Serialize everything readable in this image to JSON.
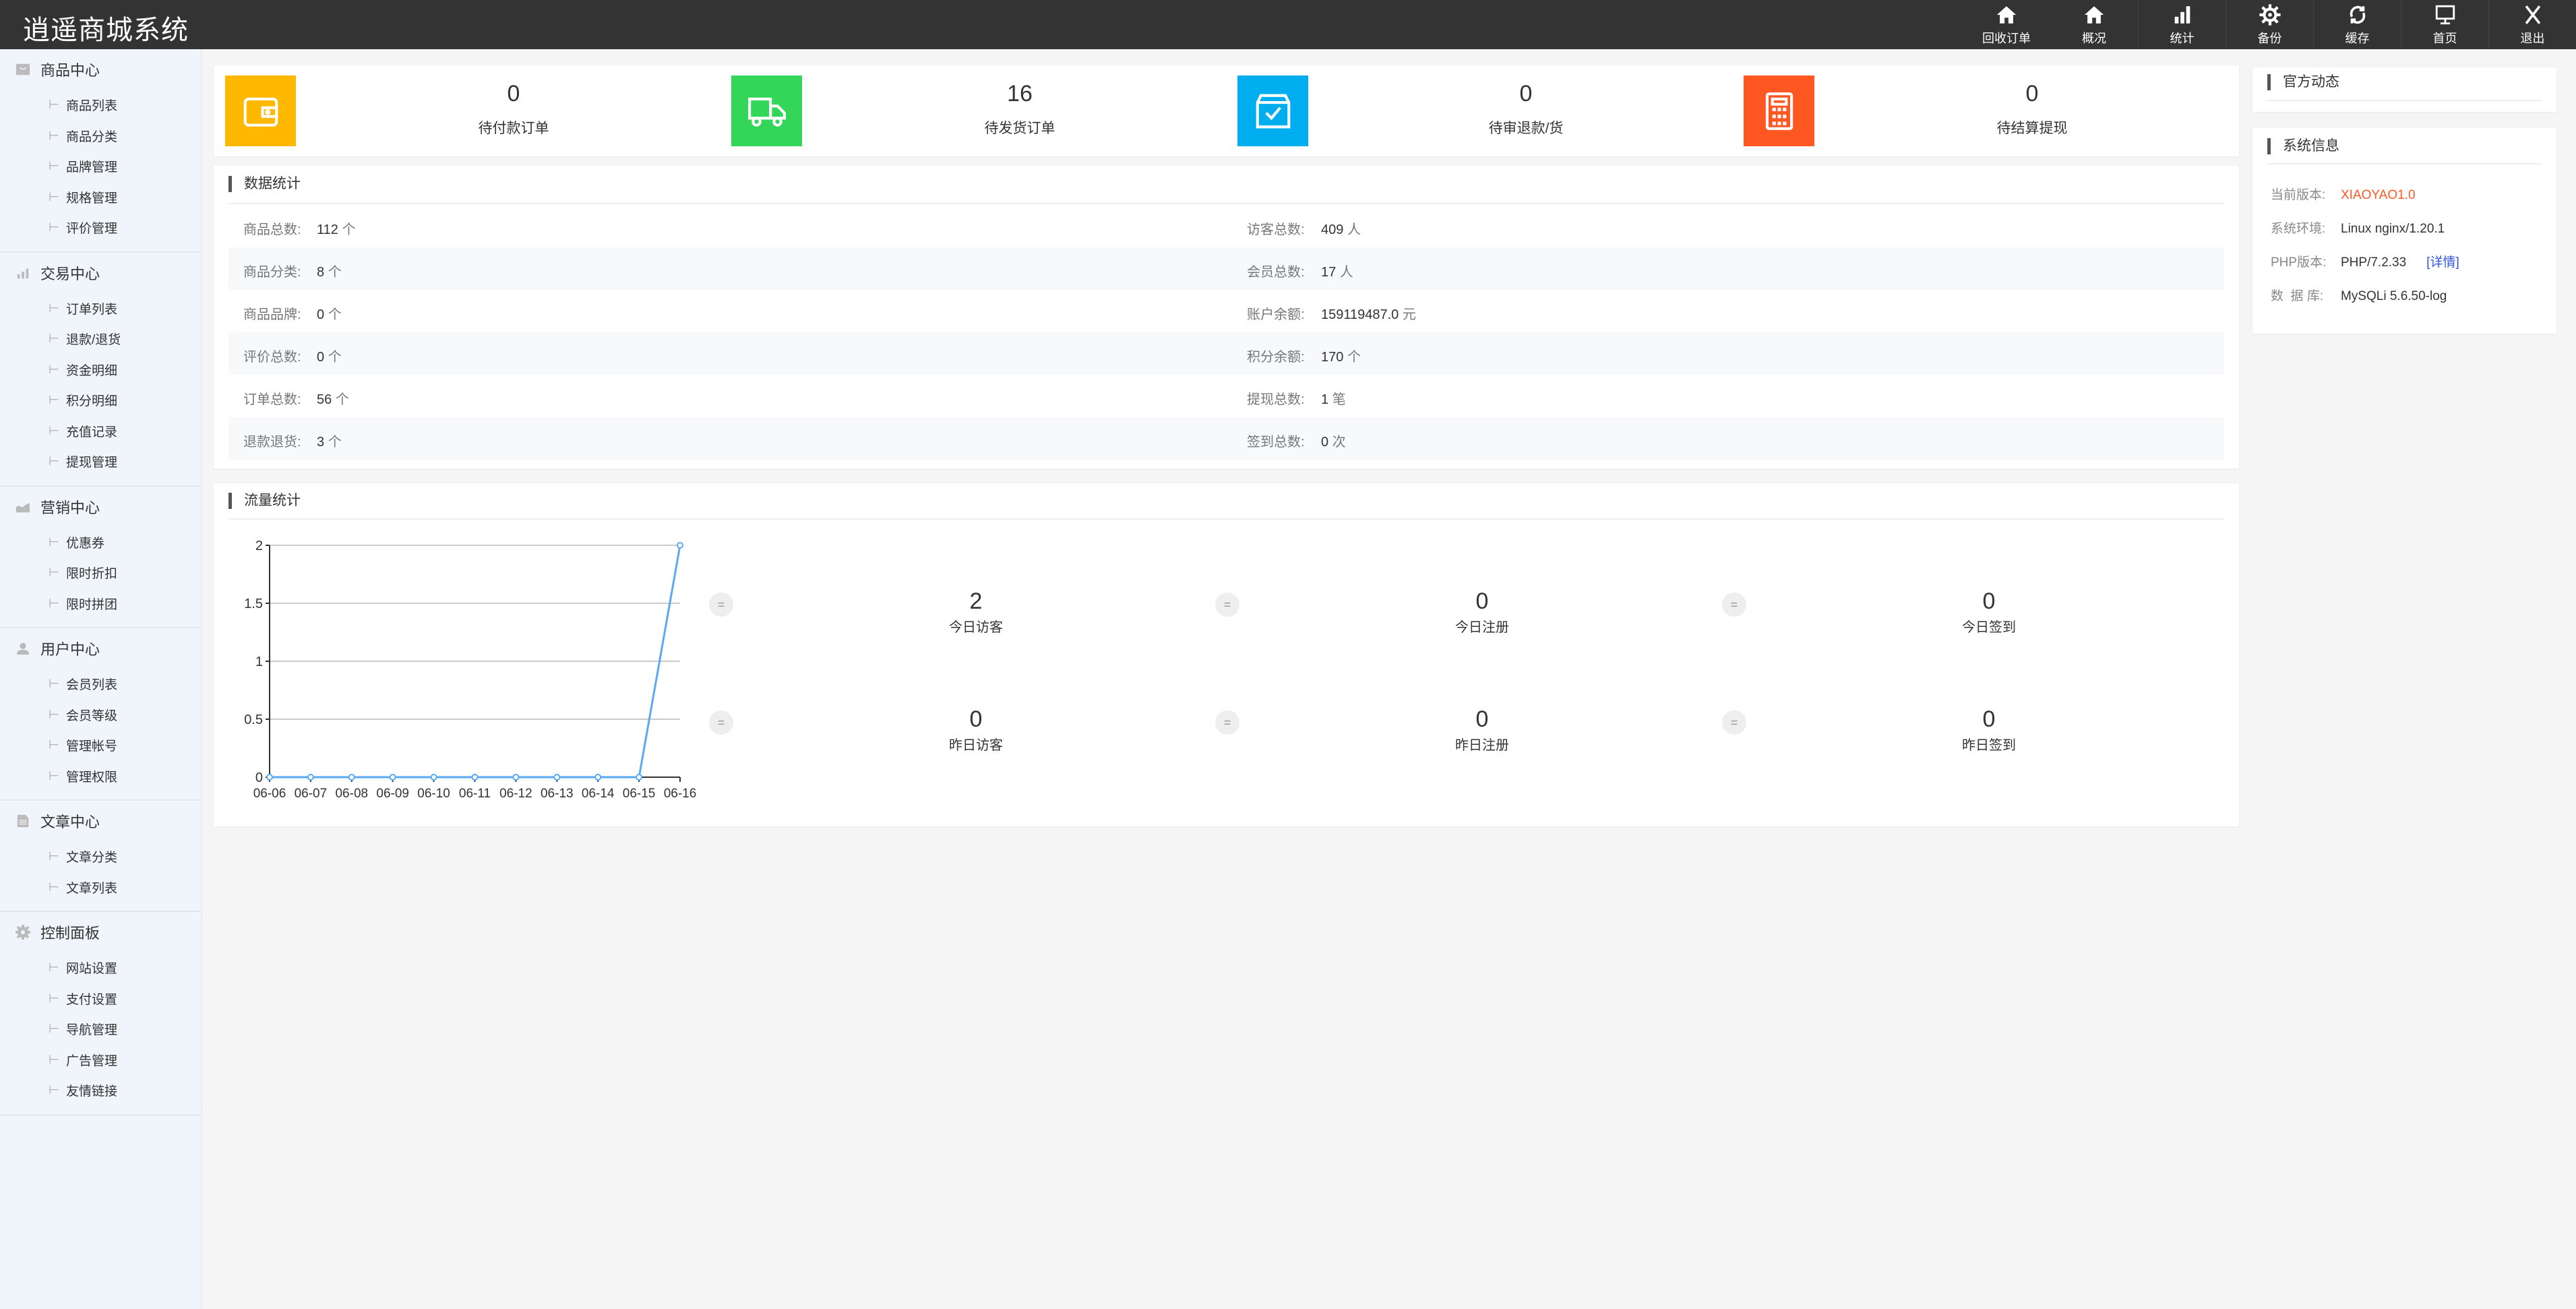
{
  "app": {
    "title": "逍遥商城系统"
  },
  "topnav": [
    {
      "label": "回收订单",
      "icon": "home-icon"
    },
    {
      "label": "概况",
      "icon": "home-icon"
    },
    {
      "label": "统计",
      "icon": "bar-chart-icon"
    },
    {
      "label": "备份",
      "icon": "gear-icon"
    },
    {
      "label": "缓存",
      "icon": "refresh-icon"
    },
    {
      "label": "首页",
      "icon": "monitor-icon"
    },
    {
      "label": "退出",
      "icon": "close-icon"
    }
  ],
  "sidebar": [
    {
      "title": "商品中心",
      "icon": "shopping-bag-icon",
      "items": [
        "商品列表",
        "商品分类",
        "品牌管理",
        "规格管理",
        "评价管理"
      ]
    },
    {
      "title": "交易中心",
      "icon": "bar-chart-icon",
      "items": [
        "订单列表",
        "退款/退货",
        "资金明细",
        "积分明细",
        "充值记录",
        "提现管理"
      ]
    },
    {
      "title": "营销中心",
      "icon": "trend-chart-icon",
      "items": [
        "优惠券",
        "限时折扣",
        "限时拼团"
      ]
    },
    {
      "title": "用户中心",
      "icon": "user-icon",
      "items": [
        "会员列表",
        "会员等级",
        "管理帐号",
        "管理权限"
      ]
    },
    {
      "title": "文章中心",
      "icon": "document-icon",
      "items": [
        "文章分类",
        "文章列表"
      ]
    },
    {
      "title": "控制面板",
      "icon": "gear-icon",
      "items": [
        "网站设置",
        "支付设置",
        "导航管理",
        "广告管理",
        "友情链接"
      ]
    }
  ],
  "stats": [
    {
      "value": "0",
      "label": "待付款订单",
      "icon": "wallet-icon",
      "color": "#FFB800"
    },
    {
      "value": "16",
      "label": "待发货订单",
      "icon": "truck-icon",
      "color": "#33D659"
    },
    {
      "value": "0",
      "label": "待审退款/货",
      "icon": "box-check-icon",
      "color": "#00AEEF"
    },
    {
      "value": "0",
      "label": "待结算提现",
      "icon": "calculator-icon",
      "color": "#FF5722"
    }
  ],
  "data_stats": {
    "title": "数据统计",
    "left": [
      {
        "label": "商品总数:",
        "value": "112",
        "unit": "个"
      },
      {
        "label": "商品分类:",
        "value": "8",
        "unit": "个"
      },
      {
        "label": "商品品牌:",
        "value": "0",
        "unit": "个"
      },
      {
        "label": "评价总数:",
        "value": "0",
        "unit": "个"
      },
      {
        "label": "订单总数:",
        "value": "56",
        "unit": "个"
      },
      {
        "label": "退款退货:",
        "value": "3",
        "unit": "个"
      }
    ],
    "right": [
      {
        "label": "访客总数:",
        "value": "409",
        "unit": "人"
      },
      {
        "label": "会员总数:",
        "value": "17",
        "unit": "人"
      },
      {
        "label": "账户余额:",
        "value": "159119487.0",
        "unit": "元"
      },
      {
        "label": "积分余额:",
        "value": "170",
        "unit": "个"
      },
      {
        "label": "提现总数:",
        "value": "1",
        "unit": "笔"
      },
      {
        "label": "签到总数:",
        "value": "0",
        "unit": "次"
      }
    ]
  },
  "flow": {
    "title": "流量统计",
    "items": [
      {
        "value": "2",
        "label": "今日访客"
      },
      {
        "value": "0",
        "label": "今日注册"
      },
      {
        "value": "0",
        "label": "今日签到"
      },
      {
        "value": "0",
        "label": "昨日访客"
      },
      {
        "value": "0",
        "label": "昨日注册"
      },
      {
        "value": "0",
        "label": "昨日签到"
      }
    ],
    "eq_symbol": "="
  },
  "chart_data": {
    "type": "line",
    "categories": [
      "06-06",
      "06-07",
      "06-08",
      "06-09",
      "06-10",
      "06-11",
      "06-12",
      "06-13",
      "06-14",
      "06-15",
      "06-16"
    ],
    "values": [
      0,
      0,
      0,
      0,
      0,
      0,
      0,
      0,
      0,
      0,
      2
    ],
    "yticks": [
      "0",
      "0.5",
      "1",
      "1.5",
      "2"
    ],
    "ylim": [
      0,
      2
    ],
    "grid": true,
    "color": "#5aa9f5"
  },
  "news": {
    "title": "官方动态"
  },
  "sysinfo": {
    "title": "系统信息",
    "rows": [
      {
        "label": "当前版本:",
        "value": "XIAOYAO1.0",
        "color": "#FF5722"
      },
      {
        "label": "系统环境:",
        "value": "Linux nginx/1.20.1"
      },
      {
        "label": "PHP版本:",
        "value": "PHP/7.2.33",
        "link": "[详情]"
      },
      {
        "label": "数  据 库:",
        "value": "MySQLi 5.6.50-log"
      }
    ]
  }
}
